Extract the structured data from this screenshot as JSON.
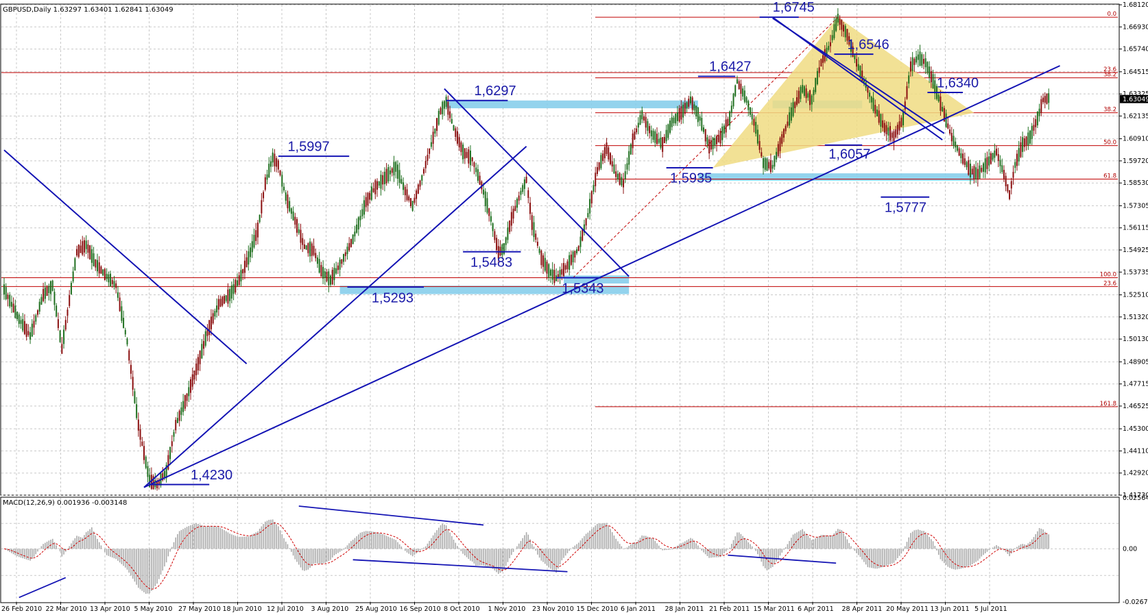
{
  "window": {
    "header": "GBPUSD,Daily  1.63297 1.63401 1.62841 1.63049",
    "macd_header": "MACD(12,26,9) 0.001936 -0.003148"
  },
  "colors": {
    "bull_candle": "#1f6f1f",
    "bear_candle": "#8b1010",
    "trendline": "#1414b4",
    "fib_line": "#c00000",
    "zone": "#87ceeb",
    "triangle": "#f0dc82",
    "macd_hist": "#a9a9a9",
    "macd_signal": "#d00000",
    "grid": "#c8c8c8"
  },
  "chart_data": [
    {
      "type": "candlestick",
      "symbol": "GBPUSD",
      "timeframe": "Daily",
      "ohlc_last": {
        "open": 1.63297,
        "high": 1.63401,
        "low": 1.62841,
        "close": 1.63049
      },
      "ylim": [
        1.4173,
        1.6812
      ],
      "y_ticks": [
        "1.68120",
        "1.66930",
        "1.65740",
        "1.64515",
        "1.63325",
        "1.62135",
        "1.60910",
        "1.59720",
        "1.58530",
        "1.57305",
        "1.56115",
        "1.54925",
        "1.53735",
        "1.52510",
        "1.51320",
        "1.50130",
        "1.48905",
        "1.47715",
        "1.46525",
        "1.45300",
        "1.44110",
        "1.42920",
        "1.41730"
      ],
      "current_price_label": "1.63049",
      "x_labels": [
        "26 Feb 2010",
        "22 Mar 2010",
        "13 Apr 2010",
        "5 May 2010",
        "27 May 2010",
        "18 Jun 2010",
        "12 Jul 2010",
        "3 Aug 2010",
        "25 Aug 2010",
        "16 Sep 2010",
        "8 Oct 2010",
        "1 Nov 2010",
        "23 Nov 2010",
        "15 Dec 2010",
        "6 Jan 2011",
        "28 Jan 2011",
        "21 Feb 2011",
        "15 Mar 2011",
        "6 Apr 2011",
        "28 Apr 2011",
        "20 May 2011",
        "13 Jun 2011",
        "5 Jul 2011"
      ],
      "path": [
        [
          0,
          1.528
        ],
        [
          8,
          1.512
        ],
        [
          14,
          1.503
        ],
        [
          21,
          1.525
        ],
        [
          26,
          1.53
        ],
        [
          31,
          1.496
        ],
        [
          39,
          1.548
        ],
        [
          44,
          1.552
        ],
        [
          49,
          1.542
        ],
        [
          54,
          1.536
        ],
        [
          60,
          1.53
        ],
        [
          66,
          1.5
        ],
        [
          72,
          1.455
        ],
        [
          78,
          1.425
        ],
        [
          82,
          1.423
        ],
        [
          87,
          1.43
        ],
        [
          92,
          1.455
        ],
        [
          98,
          1.47
        ],
        [
          104,
          1.488
        ],
        [
          109,
          1.505
        ],
        [
          115,
          1.52
        ],
        [
          121,
          1.525
        ],
        [
          126,
          1.533
        ],
        [
          131,
          1.545
        ],
        [
          136,
          1.56
        ],
        [
          140,
          1.585
        ],
        [
          144,
          1.599
        ],
        [
          147,
          1.595
        ],
        [
          151,
          1.578
        ],
        [
          156,
          1.565
        ],
        [
          161,
          1.551
        ],
        [
          166,
          1.549
        ],
        [
          170,
          1.538
        ],
        [
          175,
          1.533
        ],
        [
          181,
          1.543
        ],
        [
          187,
          1.555
        ],
        [
          194,
          1.575
        ],
        [
          199,
          1.583
        ],
        [
          205,
          1.589
        ],
        [
          210,
          1.594
        ],
        [
          215,
          1.581
        ],
        [
          219,
          1.573
        ],
        [
          224,
          1.588
        ],
        [
          229,
          1.606
        ],
        [
          234,
          1.624
        ],
        [
          237,
          1.629
        ],
        [
          241,
          1.615
        ],
        [
          246,
          1.602
        ],
        [
          251,
          1.598
        ],
        [
          256,
          1.584
        ],
        [
          261,
          1.566
        ],
        [
          265,
          1.548
        ],
        [
          268,
          1.55
        ],
        [
          272,
          1.566
        ],
        [
          277,
          1.58
        ],
        [
          280,
          1.587
        ],
        [
          283,
          1.564
        ],
        [
          288,
          1.545
        ],
        [
          292,
          1.538
        ],
        [
          296,
          1.534
        ],
        [
          302,
          1.541
        ],
        [
          308,
          1.55
        ],
        [
          313,
          1.568
        ],
        [
          318,
          1.592
        ],
        [
          323,
          1.604
        ],
        [
          328,
          1.59
        ],
        [
          332,
          1.585
        ],
        [
          337,
          1.608
        ],
        [
          342,
          1.622
        ],
        [
          347,
          1.612
        ],
        [
          353,
          1.606
        ],
        [
          358,
          1.618
        ],
        [
          364,
          1.624
        ],
        [
          368,
          1.63
        ],
        [
          373,
          1.62
        ],
        [
          378,
          1.605
        ],
        [
          384,
          1.61
        ],
        [
          389,
          1.62
        ],
        [
          393,
          1.64
        ],
        [
          398,
          1.63
        ],
        [
          403,
          1.615
        ],
        [
          407,
          1.596
        ],
        [
          412,
          1.594
        ],
        [
          418,
          1.612
        ],
        [
          423,
          1.625
        ],
        [
          428,
          1.636
        ],
        [
          433,
          1.63
        ],
        [
          438,
          1.65
        ],
        [
          443,
          1.66
        ],
        [
          447,
          1.674
        ],
        [
          452,
          1.665
        ],
        [
          457,
          1.65
        ],
        [
          462,
          1.638
        ],
        [
          467,
          1.625
        ],
        [
          472,
          1.615
        ],
        [
          477,
          1.61
        ],
        [
          482,
          1.62
        ],
        [
          486,
          1.648
        ],
        [
          490,
          1.653
        ],
        [
          494,
          1.65
        ],
        [
          498,
          1.64
        ],
        [
          503,
          1.625
        ],
        [
          508,
          1.61
        ],
        [
          513,
          1.6
        ],
        [
          518,
          1.592
        ],
        [
          522,
          1.59
        ],
        [
          527,
          1.596
        ],
        [
          532,
          1.602
        ],
        [
          536,
          1.59
        ],
        [
          539,
          1.579
        ],
        [
          542,
          1.595
        ],
        [
          546,
          1.606
        ],
        [
          550,
          1.61
        ],
        [
          554,
          1.62
        ],
        [
          557,
          1.63
        ],
        [
          560,
          1.631
        ]
      ],
      "price_labels": [
        "1,6745",
        "1,6546",
        "1,6427",
        "1,6340",
        "1,6297",
        "1,5997",
        "1,6057",
        "1,5935",
        "1,5777",
        "1,5483",
        "1,5343",
        "1,5293",
        "1,4230"
      ],
      "fib_levels": [
        "0.0",
        "38.2",
        "23.6",
        "38.2",
        "50.0",
        "61.8",
        "100.0",
        "23.6",
        "161.8"
      ]
    },
    {
      "type": "bar",
      "name": "MACD(12,26,9)",
      "macd_value": 0.001936,
      "signal_value": -0.003148,
      "ylim": [
        -0.02676,
        0.025642
      ],
      "y_ticks": [
        "0.025642",
        "0.00",
        "-0.02676"
      ]
    }
  ]
}
